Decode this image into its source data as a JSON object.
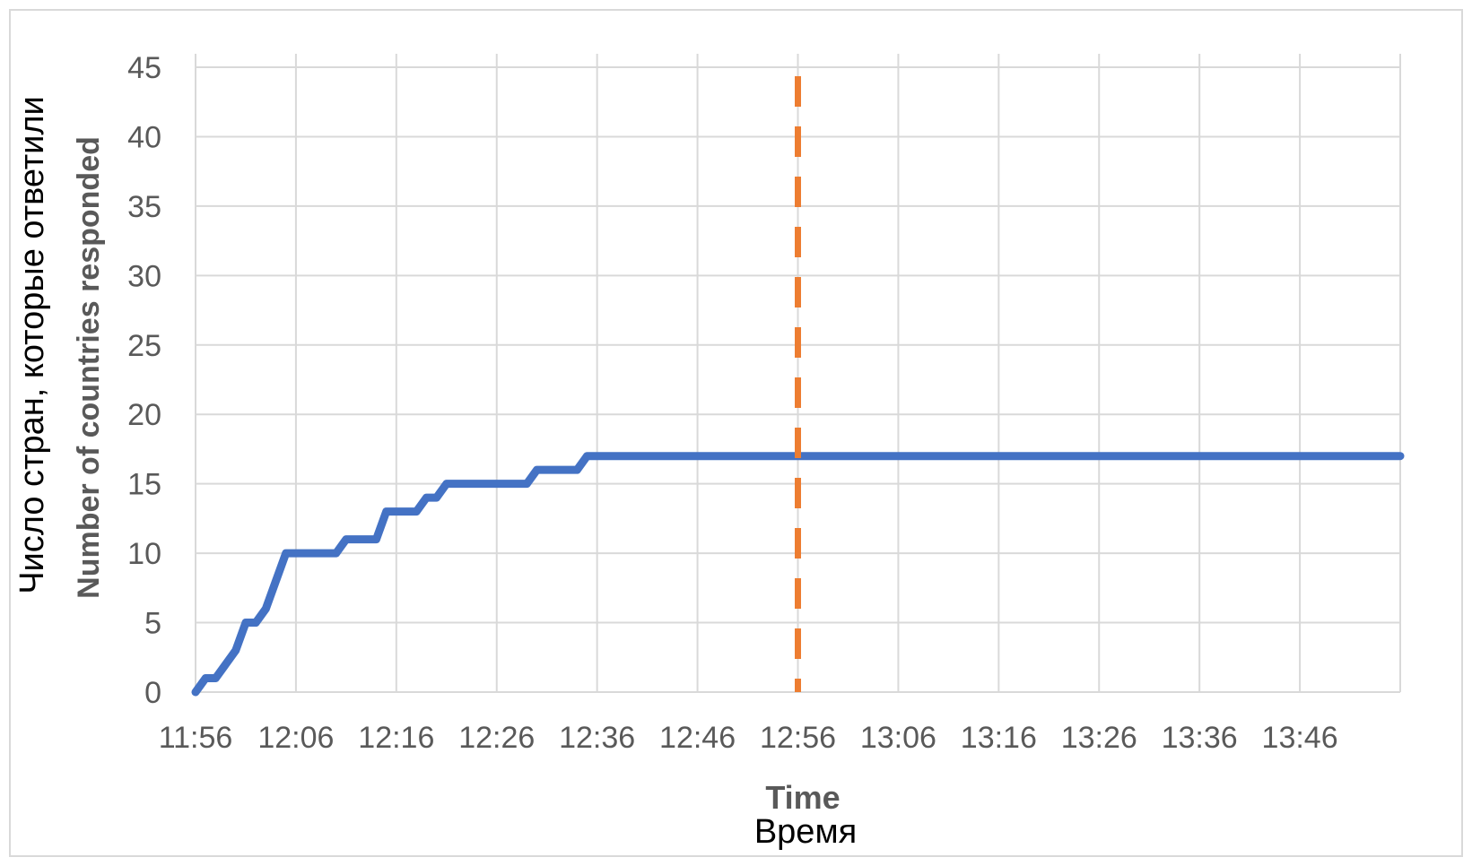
{
  "chart_data": {
    "type": "line",
    "xlabel": "Time",
    "xlabel_ru": "Время",
    "ylabel": "Number of countries responded",
    "ylabel_ru": "Число стран, которые ответили",
    "ylim": [
      0,
      45
    ],
    "y_ticks": [
      "0",
      "5",
      "10",
      "15",
      "20",
      "25",
      "30",
      "35",
      "40",
      "45"
    ],
    "x_ticks": [
      "11:56",
      "12:06",
      "12:16",
      "12:26",
      "12:36",
      "12:46",
      "12:56",
      "13:06",
      "13:16",
      "13:26",
      "13:36",
      "13:46"
    ],
    "x_start": "11:56",
    "x_end": "13:56",
    "grid": true,
    "series": [
      {
        "color": "#4472c4",
        "points": [
          [
            "11:56",
            0
          ],
          [
            "11:57",
            1
          ],
          [
            "11:58",
            1
          ],
          [
            "11:59",
            2
          ],
          [
            "12:00",
            3
          ],
          [
            "12:01",
            5
          ],
          [
            "12:02",
            5
          ],
          [
            "12:03",
            6
          ],
          [
            "12:04",
            8
          ],
          [
            "12:05",
            10
          ],
          [
            "12:10",
            10
          ],
          [
            "12:11",
            11
          ],
          [
            "12:14",
            11
          ],
          [
            "12:15",
            13
          ],
          [
            "12:18",
            13
          ],
          [
            "12:19",
            14
          ],
          [
            "12:20",
            14
          ],
          [
            "12:21",
            15
          ],
          [
            "12:26",
            15
          ],
          [
            "12:29",
            15
          ],
          [
            "12:30",
            16
          ],
          [
            "12:34",
            16
          ],
          [
            "12:35",
            17
          ],
          [
            "13:56",
            17
          ]
        ]
      }
    ],
    "marker_line": {
      "x": "12:56",
      "color": "#ed7d31",
      "style": "dashed"
    }
  }
}
